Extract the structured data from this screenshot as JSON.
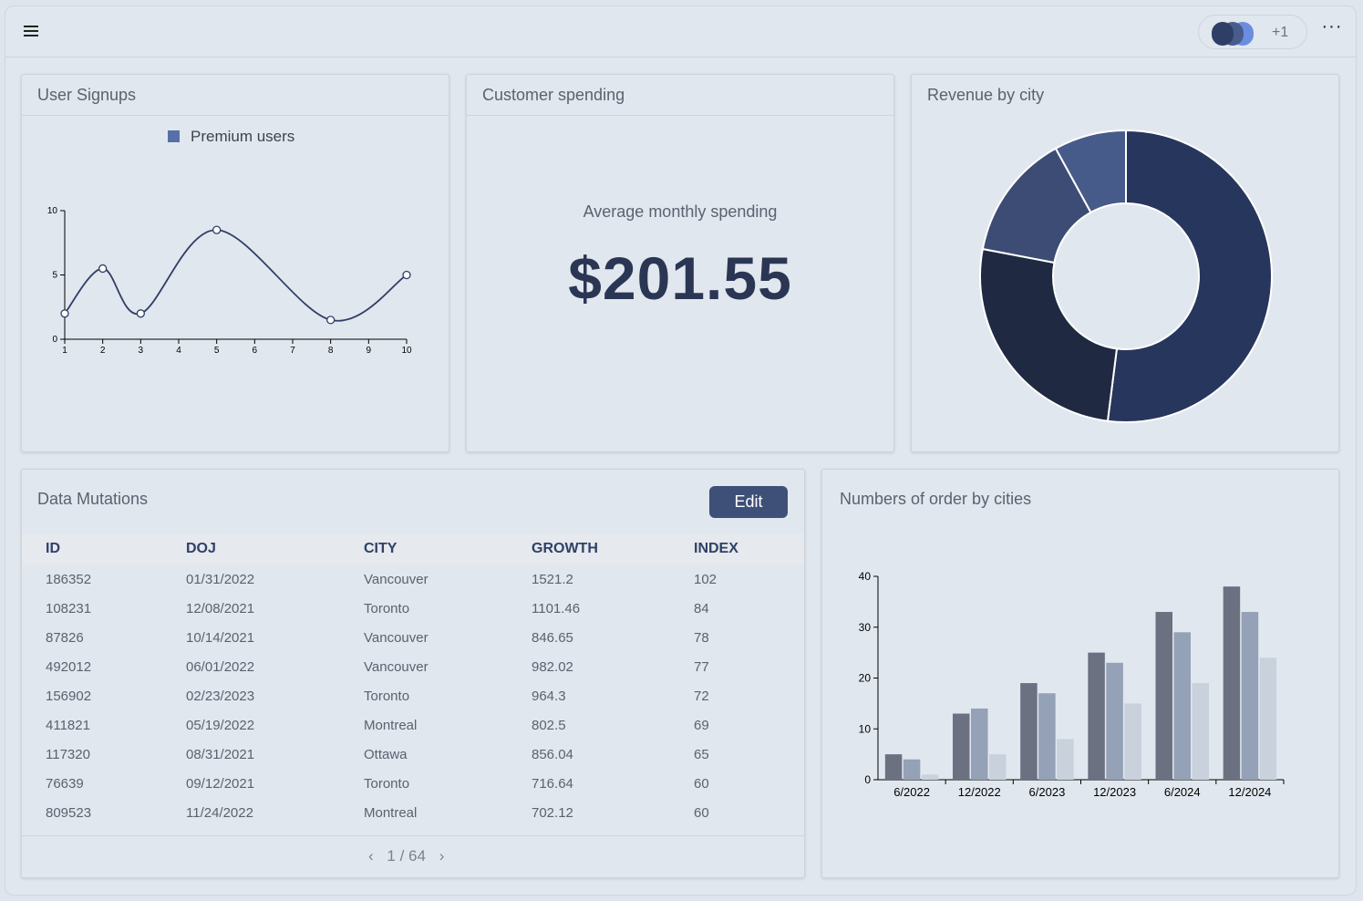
{
  "topbar": {
    "more_count": "+1",
    "avatar_colors": [
      "#2f3e66",
      "#4a5c8c",
      "#6b8de0"
    ]
  },
  "signups": {
    "title": "User Signups",
    "legend": "Premium users"
  },
  "spending": {
    "title": "Customer spending",
    "label": "Average monthly spending",
    "value": "$201.55"
  },
  "revenue": {
    "title": "Revenue by city"
  },
  "mutations": {
    "title": "Data Mutations",
    "edit_label": "Edit",
    "columns": [
      "ID",
      "DOJ",
      "CITY",
      "GROWTH",
      "INDEX"
    ],
    "rows": [
      [
        "186352",
        "01/31/2022",
        "Vancouver",
        "1521.2",
        "102"
      ],
      [
        "108231",
        "12/08/2021",
        "Toronto",
        "1101.46",
        "84"
      ],
      [
        "87826",
        "10/14/2021",
        "Vancouver",
        "846.65",
        "78"
      ],
      [
        "492012",
        "06/01/2022",
        "Vancouver",
        "982.02",
        "77"
      ],
      [
        "156902",
        "02/23/2023",
        "Toronto",
        "964.3",
        "72"
      ],
      [
        "411821",
        "05/19/2022",
        "Montreal",
        "802.5",
        "69"
      ],
      [
        "117320",
        "08/31/2021",
        "Ottawa",
        "856.04",
        "65"
      ],
      [
        "76639",
        "09/12/2021",
        "Toronto",
        "716.64",
        "60"
      ],
      [
        "809523",
        "11/24/2022",
        "Montreal",
        "702.12",
        "60"
      ]
    ],
    "pager_text": "1 / 64",
    "prev_icon": "chevron-left-icon",
    "next_icon": "chevron-right-icon"
  },
  "orders": {
    "title": "Numbers of order by cities"
  },
  "chart_data": [
    {
      "type": "line",
      "title": "User Signups",
      "series": [
        {
          "name": "Premium users",
          "x": [
            1,
            2,
            3,
            5,
            8,
            10
          ],
          "y": [
            2,
            5.5,
            2,
            8.5,
            1.5,
            5
          ]
        }
      ],
      "x_ticks": [
        1,
        2,
        3,
        4,
        5,
        6,
        7,
        8,
        9,
        10
      ],
      "y_ticks": [
        0,
        5,
        10
      ],
      "xlim": [
        1,
        10
      ],
      "ylim": [
        0,
        10
      ],
      "color": "#2f3e66"
    },
    {
      "type": "pie",
      "title": "Revenue by city",
      "values": [
        52,
        26,
        14,
        8
      ],
      "colors": [
        "#27365c",
        "#1f2a42",
        "#3d4c74",
        "#475b8b"
      ],
      "donut": true
    },
    {
      "type": "bar",
      "title": "Numbers of order by cities",
      "categories": [
        "6/2022",
        "12/2022",
        "6/2023",
        "12/2023",
        "6/2024",
        "12/2024"
      ],
      "series": [
        {
          "values": [
            5,
            13,
            19,
            25,
            33,
            38
          ],
          "color": "#6b7180"
        },
        {
          "values": [
            4,
            14,
            17,
            23,
            29,
            33
          ],
          "color": "#94a1b6"
        },
        {
          "values": [
            1,
            5,
            8,
            15,
            19,
            24
          ],
          "color": "#c9d1dd"
        }
      ],
      "y_ticks": [
        0,
        10,
        20,
        30,
        40
      ],
      "ylim": [
        0,
        40
      ]
    }
  ]
}
